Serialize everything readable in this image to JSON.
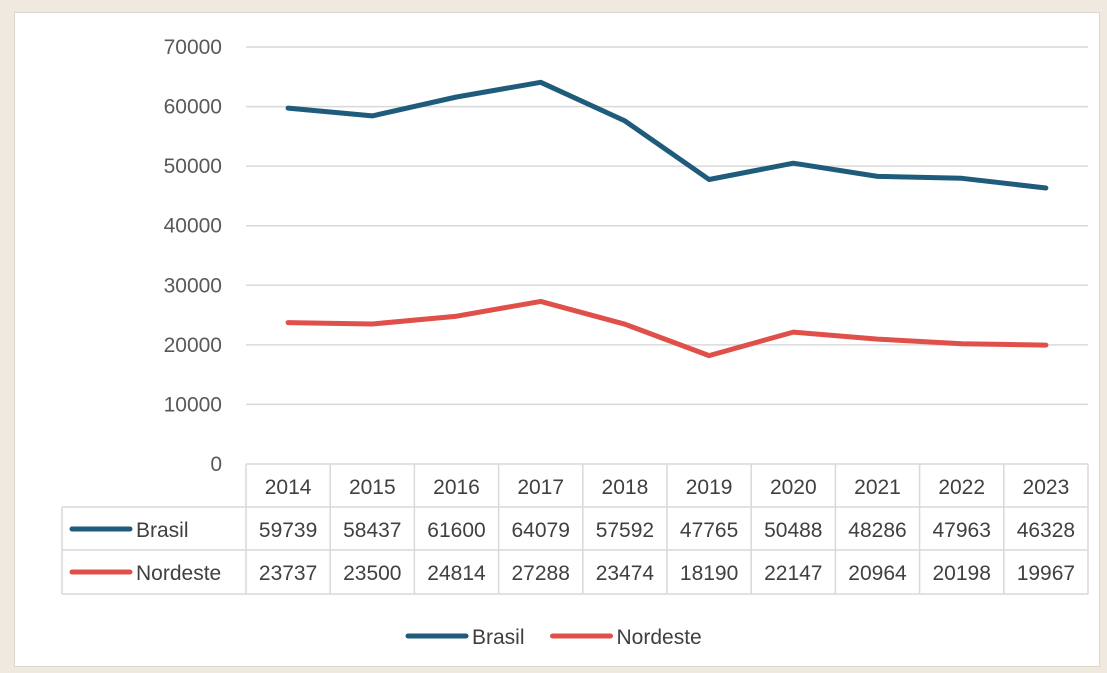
{
  "chart_data": {
    "type": "line",
    "categories": [
      "2014",
      "2015",
      "2016",
      "2017",
      "2018",
      "2019",
      "2020",
      "2021",
      "2022",
      "2023"
    ],
    "series": [
      {
        "name": "Brasil",
        "color": "#1f5b7a",
        "values": [
          59739,
          58437,
          61600,
          64079,
          57592,
          47765,
          50488,
          48286,
          47963,
          46328
        ]
      },
      {
        "name": "Nordeste",
        "color": "#e0504a",
        "values": [
          23737,
          23500,
          24814,
          27288,
          23474,
          18190,
          22147,
          20964,
          20198,
          19967
        ]
      }
    ],
    "ylim": [
      0,
      70000
    ],
    "yticks": [
      0,
      10000,
      20000,
      30000,
      40000,
      50000,
      60000,
      70000
    ],
    "grid": true,
    "data_table": true,
    "legend": "bottom-center"
  }
}
